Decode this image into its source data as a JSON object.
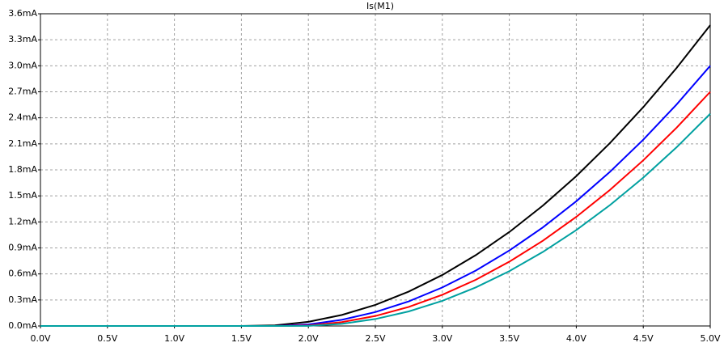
{
  "chart_data": {
    "type": "line",
    "title": "Is(M1)",
    "x": [
      0,
      0.25,
      0.5,
      0.75,
      1.0,
      1.25,
      1.5,
      1.75,
      2.0,
      2.25,
      2.5,
      2.75,
      3.0,
      3.25,
      3.5,
      3.75,
      4.0,
      4.25,
      4.5,
      4.75,
      5.0
    ],
    "series": [
      {
        "color": "#000000",
        "values": [
          0,
          0,
          0,
          0,
          0,
          0,
          0,
          0.007,
          0.048,
          0.127,
          0.243,
          0.397,
          0.588,
          0.817,
          1.083,
          1.387,
          1.728,
          2.107,
          2.523,
          2.977,
          3.468
        ]
      },
      {
        "color": "#0000ff",
        "values": [
          0,
          0,
          0,
          0,
          0,
          0,
          0,
          0,
          0.018,
          0.071,
          0.16,
          0.284,
          0.444,
          0.639,
          0.87,
          1.136,
          1.438,
          1.775,
          2.148,
          2.556,
          3.0
        ]
      },
      {
        "color": "#ff0000",
        "values": [
          0,
          0,
          0,
          0,
          0,
          0,
          0,
          0,
          0.006,
          0.044,
          0.115,
          0.22,
          0.36,
          0.533,
          0.741,
          0.982,
          1.258,
          1.567,
          1.91,
          2.288,
          2.7
        ]
      },
      {
        "color": "#00a0a0",
        "values": [
          0,
          0,
          0,
          0,
          0,
          0,
          0,
          0,
          0.001,
          0.024,
          0.08,
          0.168,
          0.29,
          0.445,
          0.632,
          0.853,
          1.106,
          1.392,
          1.71,
          2.062,
          2.447
        ]
      }
    ],
    "xlim": [
      0,
      5
    ],
    "ylim": [
      0,
      3.6
    ],
    "xticks": [
      {
        "value": 0,
        "label": "0.0V"
      },
      {
        "value": 0.5,
        "label": "0.5V"
      },
      {
        "value": 1.0,
        "label": "1.0V"
      },
      {
        "value": 1.5,
        "label": "1.5V"
      },
      {
        "value": 2.0,
        "label": "2.0V"
      },
      {
        "value": 2.5,
        "label": "2.5V"
      },
      {
        "value": 3.0,
        "label": "3.0V"
      },
      {
        "value": 3.5,
        "label": "3.5V"
      },
      {
        "value": 4.0,
        "label": "4.0V"
      },
      {
        "value": 4.5,
        "label": "4.5V"
      },
      {
        "value": 5.0,
        "label": "5.0V"
      }
    ],
    "yticks": [
      {
        "value": 0,
        "label": "0.0mA"
      },
      {
        "value": 0.3,
        "label": "0.3mA"
      },
      {
        "value": 0.6,
        "label": "0.6mA"
      },
      {
        "value": 0.9,
        "label": "0.9mA"
      },
      {
        "value": 1.2,
        "label": "1.2mA"
      },
      {
        "value": 1.5,
        "label": "1.5mA"
      },
      {
        "value": 1.8,
        "label": "1.8mA"
      },
      {
        "value": 2.1,
        "label": "2.1mA"
      },
      {
        "value": 2.4,
        "label": "2.4mA"
      },
      {
        "value": 2.7,
        "label": "2.7mA"
      },
      {
        "value": 3.0,
        "label": "3.0mA"
      },
      {
        "value": 3.3,
        "label": "3.3mA"
      },
      {
        "value": 3.6,
        "label": "3.6mA"
      }
    ],
    "grid": true
  }
}
